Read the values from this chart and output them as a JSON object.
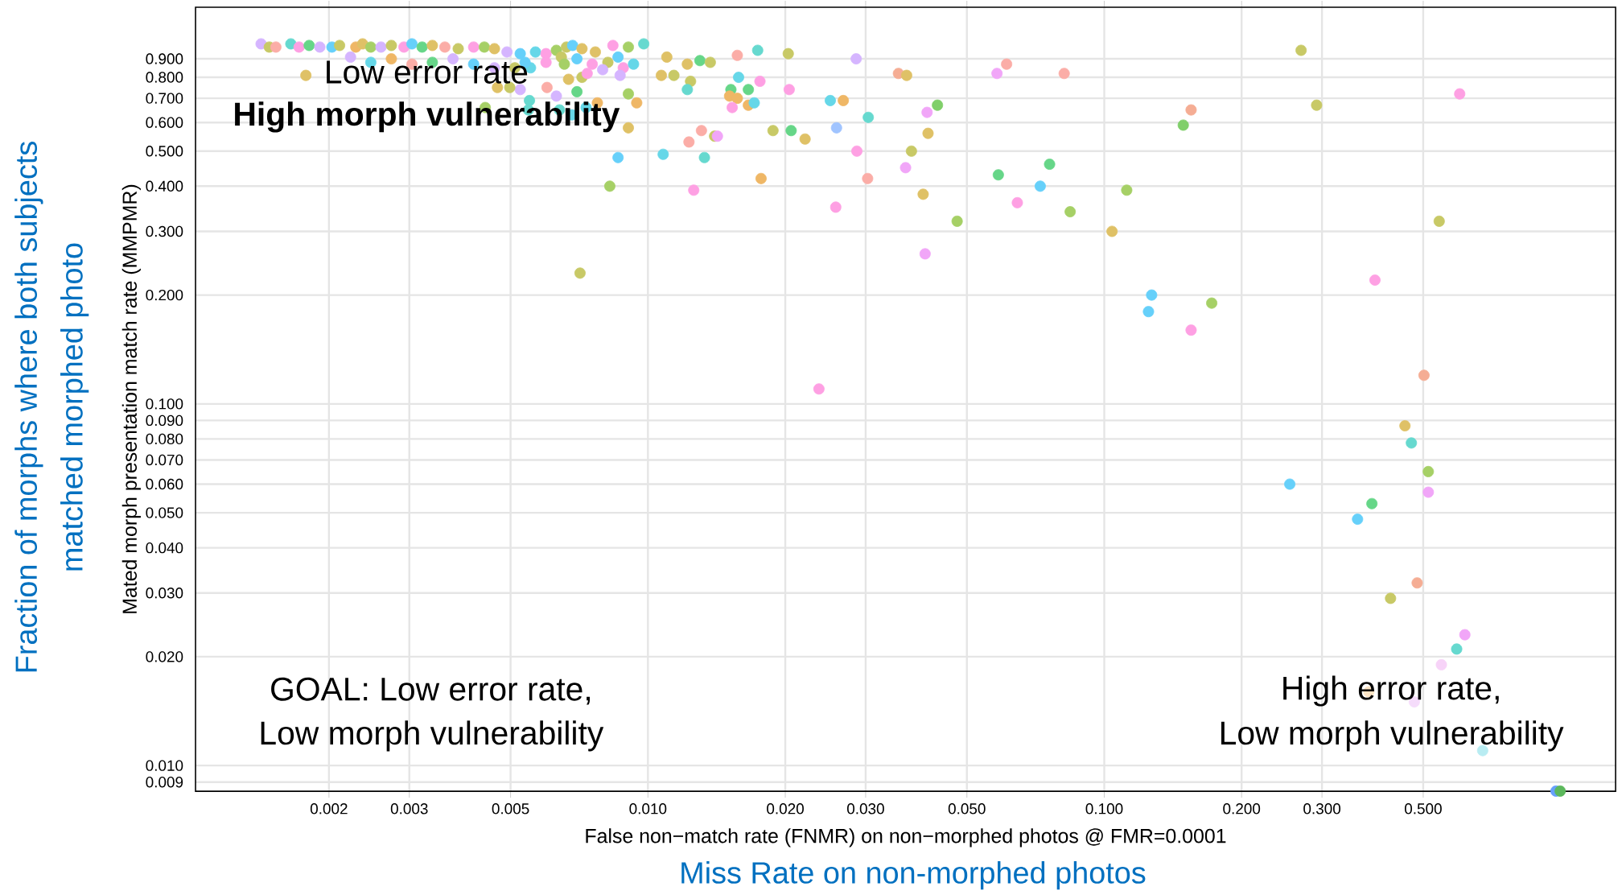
{
  "chart_data": {
    "type": "scatter",
    "xlabel": "False non−match rate (FNMR) on non−morphed photos @ FMR=0.0001",
    "ylabel": "Mated morph presentation match rate (MMPMR)",
    "annotations": [
      "Low error rate",
      "High morph vulnerability",
      "GOAL: Low error rate,",
      "Low morph vulnerability",
      "High error rate,",
      "Low morph vulnerability",
      "Fraction of morphs where both subjects",
      "matched morphed photo",
      "Miss Rate on non-morphed photos"
    ],
    "log": "xy",
    "grid": true,
    "marker": "circle",
    "xlim": [
      0.00102,
      1.32
    ],
    "ylim": [
      0.00849,
      1.25
    ],
    "xticks": [
      0.002,
      0.003,
      0.005,
      {
        "value": 0.01,
        "label": "0.010"
      },
      {
        "value": 0.02,
        "label": "0.020"
      },
      {
        "value": 0.03,
        "label": "0.030"
      },
      {
        "value": 0.05,
        "label": "0.050"
      },
      {
        "value": 0.1,
        "label": "0.100"
      },
      {
        "value": 0.2,
        "label": "0.200"
      },
      {
        "value": 0.3,
        "label": "0.300"
      },
      {
        "value": 0.5,
        "label": "0.500"
      }
    ],
    "yticks": [
      0.009,
      {
        "value": 0.01,
        "label": "0.010"
      },
      {
        "value": 0.02,
        "label": "0.020"
      },
      {
        "value": 0.03,
        "label": "0.030"
      },
      {
        "value": 0.04,
        "label": "0.040"
      },
      {
        "value": 0.05,
        "label": "0.050"
      },
      {
        "value": 0.06,
        "label": "0.060"
      },
      {
        "value": 0.07,
        "label": "0.070"
      },
      {
        "value": 0.08,
        "label": "0.080"
      },
      {
        "value": 0.09,
        "label": "0.090"
      },
      {
        "value": 0.1,
        "label": "0.100"
      },
      {
        "value": 0.2,
        "label": "0.200"
      },
      {
        "value": 0.3,
        "label": "0.300"
      },
      {
        "value": 0.4,
        "label": "0.400"
      },
      {
        "value": 0.5,
        "label": "0.500"
      },
      {
        "value": 0.6,
        "label": "0.600"
      },
      {
        "value": 0.7,
        "label": "0.700"
      },
      {
        "value": 0.8,
        "label": "0.800"
      },
      {
        "value": 0.9,
        "label": "0.900"
      }
    ],
    "x": [
      0.00142,
      0.00148,
      0.00153,
      0.00165,
      0.00172,
      0.00181,
      0.00191,
      0.00203,
      0.00211,
      0.00229,
      0.00237,
      0.00247,
      0.0026,
      0.00274,
      0.00292,
      0.00304,
      0.0032,
      0.00337,
      0.00359,
      0.00384,
      0.00415,
      0.00438,
      0.00461,
      0.00491,
      0.00525,
      0.00567,
      0.00598,
      0.0063,
      0.00663,
      0.00684,
      0.00717,
      0.00767,
      0.00838,
      0.00906,
      0.00979,
      0.00178,
      0.00223,
      0.00247,
      0.00274,
      0.00304,
      0.00337,
      0.00374,
      0.00415,
      0.00461,
      0.00511,
      0.00553,
      0.00598,
      0.00646,
      0.00699,
      0.00755,
      0.00817,
      0.0086,
      0.00883,
      0.0093,
      0.0067,
      0.00717,
      0.00736,
      0.00796,
      0.00869,
      0.00656,
      0.00538,
      0.0055,
      0.0063,
      0.00699,
      0.00775,
      0.00906,
      0.00945,
      0.00906,
      0.0044,
      0.00732,
      0.00681,
      0.0086,
      0.00825,
      0.00601,
      0.00525,
      0.00468,
      0.00498,
      0.00547,
      0.0064,
      0.0071,
      0.011,
      0.0122,
      0.013,
      0.0137,
      0.0107,
      0.0114,
      0.0124,
      0.0122,
      0.0157,
      0.0174,
      0.0203,
      0.0158,
      0.0176,
      0.0152,
      0.0166,
      0.0204,
      0.0151,
      0.0157,
      0.0153,
      0.0166,
      0.0171,
      0.0286,
      0.0354,
      0.0369,
      0.0251,
      0.0268,
      0.0304,
      0.0431,
      0.0409,
      0.0259,
      0.0188,
      0.0206,
      0.0221,
      0.0131,
      0.014,
      0.0142,
      0.0123,
      0.0108,
      0.0133,
      0.0287,
      0.0378,
      0.0367,
      0.0411,
      0.0177,
      0.0126,
      0.0303,
      0.0401,
      0.0258,
      0.0476,
      0.0405,
      0.0582,
      0.0611,
      0.0817,
      0.0586,
      0.0759,
      0.0724,
      0.0645,
      0.0842,
      0.27,
      0.292,
      0.601,
      0.155,
      0.149,
      0.112,
      0.104,
      0.542,
      0.392,
      0.127,
      0.125,
      0.172,
      0.155,
      0.502,
      0.456,
      0.471,
      0.513,
      0.513,
      0.255,
      0.386,
      0.359,
      0.485,
      0.424,
      0.617,
      0.592,
      0.548,
      0.38,
      0.478,
      0.675,
      0.977,
      0.998,
      0.0237
    ],
    "values": [
      0.99,
      0.97,
      0.97,
      0.99,
      0.97,
      0.98,
      0.97,
      0.97,
      0.98,
      0.97,
      0.99,
      0.97,
      0.97,
      0.98,
      0.97,
      0.99,
      0.97,
      0.98,
      0.97,
      0.96,
      0.97,
      0.97,
      0.96,
      0.94,
      0.93,
      0.94,
      0.93,
      0.95,
      0.97,
      0.98,
      0.96,
      0.94,
      0.98,
      0.97,
      0.99,
      0.81,
      0.91,
      0.88,
      0.9,
      0.87,
      0.88,
      0.9,
      0.87,
      0.85,
      0.85,
      0.85,
      0.88,
      0.91,
      0.9,
      0.87,
      0.88,
      0.91,
      0.85,
      0.87,
      0.79,
      0.8,
      0.82,
      0.84,
      0.81,
      0.87,
      0.88,
      0.69,
      0.71,
      0.73,
      0.68,
      0.72,
      0.68,
      0.58,
      0.66,
      0.66,
      0.63,
      0.48,
      0.4,
      0.75,
      0.74,
      0.75,
      0.75,
      0.65,
      0.65,
      0.23,
      0.91,
      0.87,
      0.89,
      0.88,
      0.81,
      0.81,
      0.78,
      0.74,
      0.92,
      0.95,
      0.93,
      0.8,
      0.78,
      0.74,
      0.74,
      0.74,
      0.71,
      0.7,
      0.66,
      0.67,
      0.68,
      0.9,
      0.82,
      0.81,
      0.69,
      0.69,
      0.62,
      0.67,
      0.64,
      0.58,
      0.57,
      0.57,
      0.54,
      0.57,
      0.55,
      0.55,
      0.53,
      0.49,
      0.48,
      0.5,
      0.5,
      0.45,
      0.56,
      0.42,
      0.39,
      0.42,
      0.38,
      0.35,
      0.32,
      0.26,
      0.82,
      0.87,
      0.82,
      0.43,
      0.46,
      0.4,
      0.36,
      0.34,
      0.95,
      0.67,
      0.72,
      0.65,
      0.59,
      0.39,
      0.3,
      0.32,
      0.22,
      0.2,
      0.18,
      0.19,
      0.16,
      0.12,
      0.087,
      0.078,
      0.065,
      0.057,
      0.06,
      0.053,
      0.048,
      0.032,
      0.029,
      0.023,
      0.021,
      0.019,
      0.016,
      0.015,
      0.011,
      0.0085,
      0.0085,
      0.11
    ],
    "colors": [
      "#d5b5ff",
      "#c8c966",
      "#fbada7",
      "#66d9cf",
      "#fea0e3",
      "#66d688",
      "#d5b5ff",
      "#66d0fa",
      "#c8c966",
      "#efb766",
      "#dfc166",
      "#a6d066",
      "#d5b5ff",
      "#c8c966",
      "#fea0e3",
      "#66d0fa",
      "#66d688",
      "#dfc166",
      "#fbada7",
      "#c8c966",
      "#fea0e3",
      "#a6d066",
      "#dfc166",
      "#d5b5ff",
      "#66d0fa",
      "#66d7e8",
      "#fea0e3",
      "#a6d066",
      "#c8c966",
      "#66d0fa",
      "#dfc166",
      "#dfc166",
      "#fea0e3",
      "#a6d066",
      "#66d9cf",
      "#dfc166",
      "#d5b5ff",
      "#66d7e8",
      "#efb766",
      "#fbada7",
      "#66d688",
      "#d5b5ff",
      "#66d0fa",
      "#d5b5ff",
      "#c8c966",
      "#66d7e8",
      "#fea0e3",
      "#c8c966",
      "#66d0fa",
      "#fea0e3",
      "#c8c966",
      "#66d0fa",
      "#fea0e3",
      "#66d7e8",
      "#dfc166",
      "#c8c966",
      "#fea0e3",
      "#d5b5ff",
      "#d5b5ff",
      "#a6d066",
      "#66d0fa",
      "#66d9cf",
      "#d5b5ff",
      "#66d688",
      "#efb766",
      "#a6d066",
      "#efb766",
      "#dfc166",
      "#a6d066",
      "#66d7e8",
      "#66d7e8",
      "#66d0fa",
      "#a6d066",
      "#fbada7",
      "#d5b5ff",
      "#dfc166",
      "#c8c966",
      "#66d9cf",
      "#66d9cf",
      "#c8c966",
      "#dfc166",
      "#dfc166",
      "#66d688",
      "#c8c966",
      "#dfc166",
      "#c8c966",
      "#c8c966",
      "#66d9cf",
      "#fbada7",
      "#66d9cf",
      "#c8c966",
      "#66d7e8",
      "#fea0e3",
      "#66d688",
      "#66d688",
      "#fea0e3",
      "#efb766",
      "#efb766",
      "#fea0e3",
      "#efb766",
      "#66d7e8",
      "#d5b5ff",
      "#f5ad94",
      "#dfc166",
      "#66d7e8",
      "#efb766",
      "#66d9cf",
      "#80cf6a",
      "#f1a6f8",
      "#a0c4ff",
      "#c8c966",
      "#66d688",
      "#dfc166",
      "#fbada7",
      "#c8c966",
      "#f1a6f8",
      "#fbada7",
      "#66d7e8",
      "#66d9cf",
      "#fea0e3",
      "#c8c966",
      "#f1a6f8",
      "#dfc166",
      "#efb766",
      "#fea0e3",
      "#fbada7",
      "#dfc166",
      "#fea0e3",
      "#a6d066",
      "#f1a6f8",
      "#f1a6f8",
      "#fbada7",
      "#fbada7",
      "#66d688",
      "#66d688",
      "#66d0fa",
      "#fea0e3",
      "#a6d066",
      "#c8c966",
      "#c8c966",
      "#fea0e3",
      "#f5ad94",
      "#80cf6a",
      "#a6d066",
      "#dfc166",
      "#c8c966",
      "#fea0e3",
      "#66d0fa",
      "#66d0fa",
      "#a6d066",
      "#fea0e3",
      "#f5ad94",
      "#dfc166",
      "#66d9cf",
      "#a6d066",
      "#f1a6f8",
      "#66d0fa",
      "#66d688",
      "#66d0fa",
      "#f5ad94",
      "#c8c966",
      "#f1a6f8",
      "#66d9cf",
      "#f7d3f8",
      "#fbe3c4",
      "#f5dcfb",
      "#b8ecf2",
      "#66a0fa",
      "#5cb85c",
      "#fea0e3"
    ]
  }
}
